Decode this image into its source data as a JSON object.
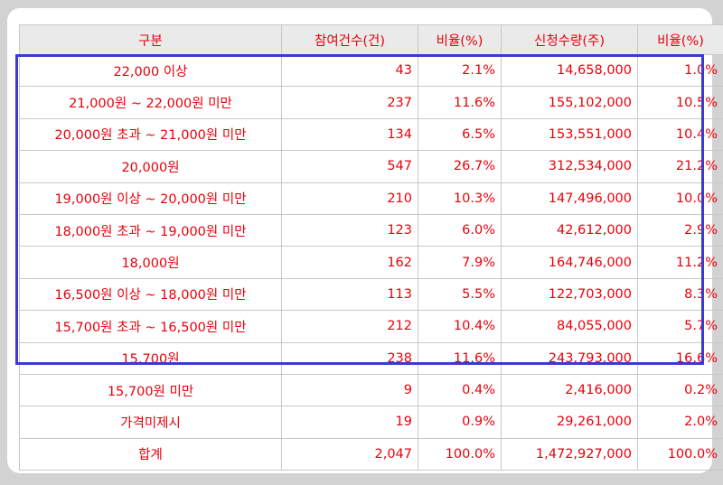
{
  "table": {
    "headers": [
      "구분",
      "참여건수(건)",
      "비율(%)",
      "신청수량(주)",
      "비율(%)"
    ],
    "rows": [
      [
        "22,000 이상",
        "43",
        "2.1%",
        "14,658,000",
        "1.0%"
      ],
      [
        "21,000원 ~ 22,000원 미만",
        "237",
        "11.6%",
        "155,102,000",
        "10.5%"
      ],
      [
        "20,000원 초과 ~ 21,000원 미만",
        "134",
        "6.5%",
        "153,551,000",
        "10.4%"
      ],
      [
        "20,000원",
        "547",
        "26.7%",
        "312,534,000",
        "21.2%"
      ],
      [
        "19,000원 이상 ~ 20,000원 미만",
        "210",
        "10.3%",
        "147,496,000",
        "10.0%"
      ],
      [
        "18,000원 초과 ~ 19,000원 미만",
        "123",
        "6.0%",
        "42,612,000",
        "2.9%"
      ],
      [
        "18,000원",
        "162",
        "7.9%",
        "164,746,000",
        "11.2%"
      ],
      [
        "16,500원 이상 ~ 18,000원 미만",
        "113",
        "5.5%",
        "122,703,000",
        "8.3%"
      ],
      [
        "15,700원 초과 ~ 16,500원 미만",
        "212",
        "10.4%",
        "84,055,000",
        "5.7%"
      ],
      [
        "15,700원",
        "238",
        "11.6%",
        "243,793,000",
        "16.6%"
      ],
      [
        "15,700원 미만",
        "9",
        "0.4%",
        "2,416,000",
        "0.2%"
      ],
      [
        "가격미제시",
        "19",
        "0.9%",
        "29,261,000",
        "2.0%"
      ],
      [
        "합계",
        "2,047",
        "100.0%",
        "1,472,927,000",
        "100.0%"
      ]
    ]
  },
  "colors": {
    "text": "#e8000b",
    "header_bg": "#eaeaea",
    "highlight_border": "#3a3ad0",
    "background": "#d2d2d2"
  }
}
